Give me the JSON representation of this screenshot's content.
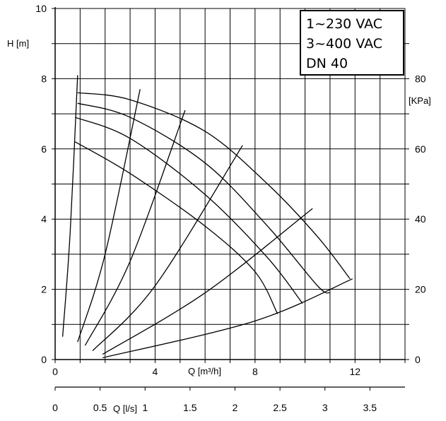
{
  "chart_data": {
    "type": "line",
    "title_lines": [
      "1~230 VAC",
      "3~400 VAC",
      "DN 40"
    ],
    "xlabel": "Q [m³/h]",
    "ylabel": "H [m]",
    "y2label": "[KPa]",
    "x2label": "Q [l/s]",
    "xlim": [
      0,
      14
    ],
    "ylim": [
      0,
      10
    ],
    "y2lim": [
      0,
      100
    ],
    "x2lim": [
      0,
      3.89
    ],
    "x_ticks": [
      "0",
      "4",
      "8",
      "12"
    ],
    "x_tick_values": [
      0,
      4,
      8,
      12
    ],
    "y_ticks": [
      "0",
      "2",
      "4",
      "6",
      "8",
      "10"
    ],
    "y_tick_values": [
      0,
      2,
      4,
      6,
      8,
      10
    ],
    "y2_ticks": [
      "0",
      "20",
      "40",
      "60",
      "80"
    ],
    "y2_tick_values": [
      0,
      20,
      40,
      60,
      80
    ],
    "x2_ticks": [
      "0",
      "0.5",
      "1",
      "1.5",
      "2",
      "2.5",
      "3",
      "3.5"
    ],
    "x2_tick_values": [
      0,
      0.5,
      1,
      1.5,
      2,
      2.5,
      3,
      3.5
    ],
    "grid": true,
    "pump_curves": [
      {
        "points": [
          [
            0.9,
            7.6
          ],
          [
            3,
            7.4
          ],
          [
            6,
            6.5
          ],
          [
            8.5,
            5.0
          ],
          [
            10.5,
            3.5
          ],
          [
            11.8,
            2.3
          ]
        ]
      },
      {
        "points": [
          [
            0.9,
            7.3
          ],
          [
            3,
            6.9
          ],
          [
            6,
            5.6
          ],
          [
            8.5,
            3.8
          ],
          [
            10.5,
            2.1
          ],
          [
            11.0,
            1.9
          ]
        ]
      },
      {
        "points": [
          [
            0.8,
            6.9
          ],
          [
            3,
            6.3
          ],
          [
            6,
            4.7
          ],
          [
            8.5,
            2.9
          ],
          [
            9.9,
            1.6
          ]
        ]
      },
      {
        "points": [
          [
            0.8,
            6.2
          ],
          [
            3,
            5.3
          ],
          [
            6,
            3.8
          ],
          [
            8,
            2.5
          ],
          [
            8.9,
            1.3
          ]
        ]
      }
    ],
    "system_curves": [
      {
        "points": [
          [
            0.3,
            0.65
          ],
          [
            0.6,
            3.6
          ],
          [
            0.9,
            8.1
          ]
        ]
      },
      {
        "points": [
          [
            0.9,
            0.5
          ],
          [
            2,
            3.0
          ],
          [
            3.4,
            7.7
          ]
        ]
      },
      {
        "points": [
          [
            1.2,
            0.4
          ],
          [
            3,
            2.8
          ],
          [
            5.2,
            7.1
          ]
        ]
      },
      {
        "points": [
          [
            1.5,
            0.25
          ],
          [
            4,
            2.1
          ],
          [
            7.5,
            6.1
          ]
        ]
      },
      {
        "points": [
          [
            1.9,
            0.15
          ],
          [
            6,
            1.9
          ],
          [
            10.3,
            4.3
          ]
        ]
      },
      {
        "points": [
          [
            1.9,
            0.05
          ],
          [
            8,
            1.1
          ],
          [
            11.9,
            2.3
          ]
        ]
      }
    ]
  }
}
